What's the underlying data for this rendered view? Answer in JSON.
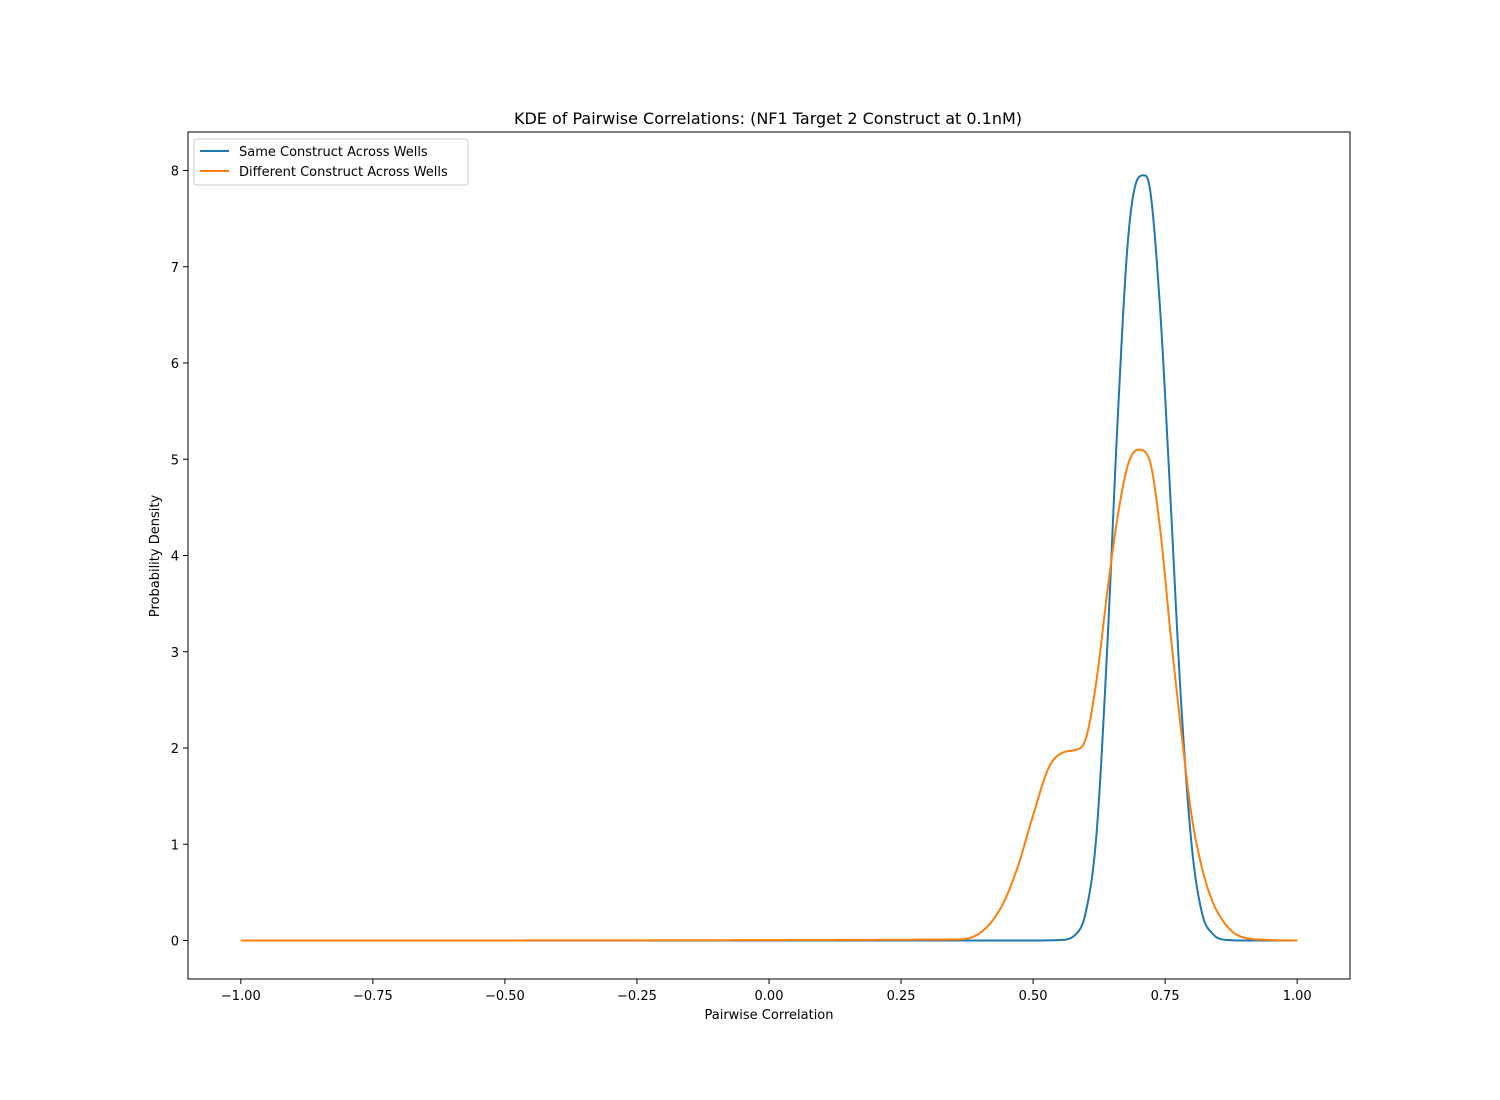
{
  "chart_data": {
    "type": "line",
    "title": "KDE of Pairwise Correlations: (NF1 Target 2 Construct at 0.1nM)",
    "xlabel": "Pairwise Correlation",
    "ylabel": "Probability Density",
    "xlim": [
      -1.1,
      1.1
    ],
    "ylim": [
      -0.4,
      8.4
    ],
    "xticks": [
      -1.0,
      -0.75,
      -0.5,
      -0.25,
      0.0,
      0.25,
      0.5,
      0.75,
      1.0
    ],
    "xtick_labels": [
      "−1.00",
      "−0.75",
      "−0.50",
      "−0.25",
      "0.00",
      "0.25",
      "0.50",
      "0.75",
      "1.00"
    ],
    "yticks": [
      0,
      1,
      2,
      3,
      4,
      5,
      6,
      7,
      8
    ],
    "ytick_labels": [
      "0",
      "1",
      "2",
      "3",
      "4",
      "5",
      "6",
      "7",
      "8"
    ],
    "grid": false,
    "legend_position": "top-left",
    "series": [
      {
        "name": "Same Construct Across Wells",
        "color": "#1f77b4",
        "x": [
          -1.0,
          0.5,
          0.55,
          0.58,
          0.6,
          0.62,
          0.64,
          0.66,
          0.68,
          0.7,
          0.71,
          0.72,
          0.74,
          0.76,
          0.78,
          0.8,
          0.82,
          0.84,
          0.86,
          0.9,
          1.0
        ],
        "y": [
          0.0,
          0.0,
          0.005,
          0.06,
          0.3,
          1.1,
          3.0,
          5.4,
          7.3,
          7.93,
          7.95,
          7.85,
          6.6,
          4.6,
          2.5,
          1.0,
          0.28,
          0.07,
          0.01,
          0.0,
          0.0
        ]
      },
      {
        "name": "Different Construct Across Wells",
        "color": "#ff7f0e",
        "x": [
          -1.0,
          0.35,
          0.4,
          0.44,
          0.47,
          0.5,
          0.53,
          0.56,
          0.58,
          0.6,
          0.62,
          0.64,
          0.66,
          0.68,
          0.7,
          0.72,
          0.74,
          0.76,
          0.78,
          0.8,
          0.82,
          0.84,
          0.86,
          0.88,
          0.9,
          0.95,
          1.0
        ],
        "y": [
          0.0,
          0.01,
          0.08,
          0.35,
          0.75,
          1.3,
          1.8,
          1.96,
          1.98,
          2.1,
          2.7,
          3.6,
          4.4,
          4.95,
          5.1,
          5.0,
          4.3,
          3.2,
          2.2,
          1.3,
          0.75,
          0.4,
          0.2,
          0.08,
          0.03,
          0.005,
          0.0
        ]
      }
    ]
  }
}
